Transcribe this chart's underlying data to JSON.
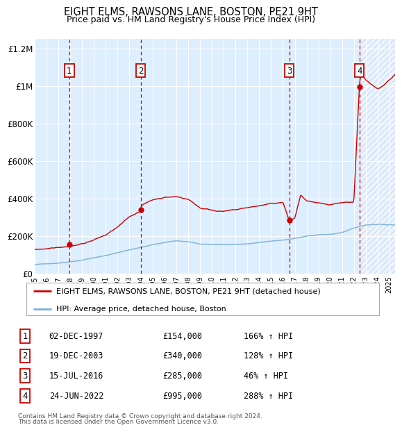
{
  "title": "EIGHT ELMS, RAWSONS LANE, BOSTON, PE21 9HT",
  "subtitle": "Price paid vs. HM Land Registry's House Price Index (HPI)",
  "legend_line1": "EIGHT ELMS, RAWSONS LANE, BOSTON, PE21 9HT (detached house)",
  "legend_line2": "HPI: Average price, detached house, Boston",
  "footnote1": "Contains HM Land Registry data © Crown copyright and database right 2024.",
  "footnote2": "This data is licensed under the Open Government Licence v3.0.",
  "sale_color": "#cc0000",
  "hpi_color": "#7bafd4",
  "bg_color": "#ddeeff",
  "sale_points": [
    {
      "label": "1",
      "date": 1997.92,
      "price": 154000,
      "text": "02-DEC-1997",
      "amount": "£154,000",
      "pct": "166% ↑ HPI"
    },
    {
      "label": "2",
      "date": 2003.96,
      "price": 340000,
      "text": "19-DEC-2003",
      "amount": "£340,000",
      "pct": "128% ↑ HPI"
    },
    {
      "label": "3",
      "date": 2016.54,
      "price": 285000,
      "text": "15-JUL-2016",
      "amount": "£285,000",
      "pct": "46% ↑ HPI"
    },
    {
      "label": "4",
      "date": 2022.48,
      "price": 995000,
      "text": "24-JUN-2022",
      "amount": "£995,000",
      "pct": "288% ↑ HPI"
    }
  ],
  "xmin": 1995.0,
  "xmax": 2025.5,
  "ymin": 0,
  "ymax": 1250000,
  "yticks": [
    0,
    200000,
    400000,
    600000,
    800000,
    1000000,
    1200000
  ],
  "ytick_labels": [
    "£0",
    "£200K",
    "£400K",
    "£600K",
    "£800K",
    "£1M",
    "£1.2M"
  ]
}
